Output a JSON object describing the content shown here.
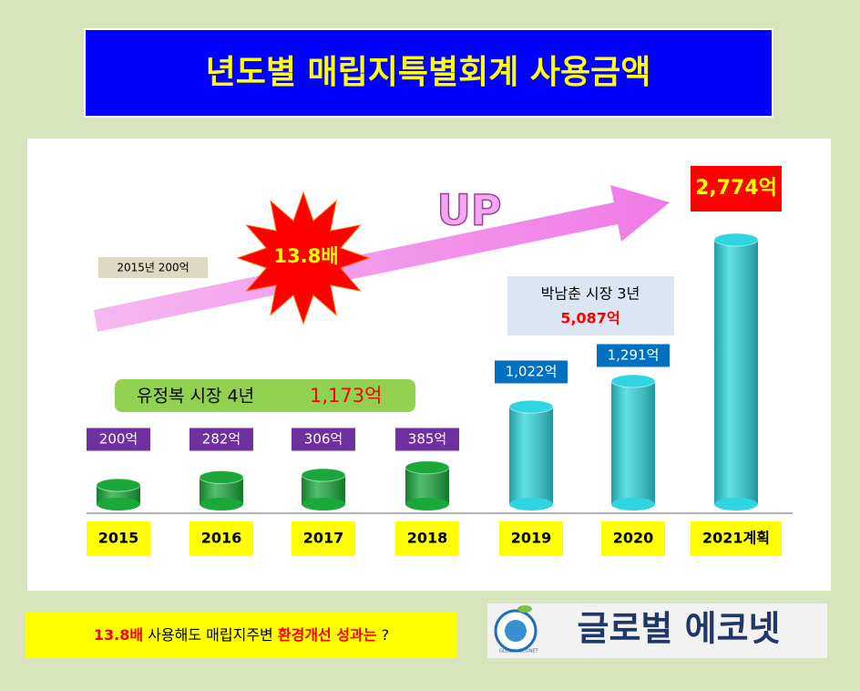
{
  "chart_data": {
    "type": "bar",
    "title": "년도별 매립지특별회계 사용금액",
    "categories": [
      "2015",
      "2016",
      "2017",
      "2018",
      "2019",
      "2020",
      "2021계획"
    ],
    "values": [
      200,
      282,
      306,
      385,
      1022,
      1291,
      2774
    ],
    "value_labels": [
      "200억",
      "282억",
      "306억",
      "385억",
      "1,022억",
      "1,291억",
      "2,774억"
    ],
    "colors": [
      "#1aa83a",
      "#1aa83a",
      "#1aa83a",
      "#1aa83a",
      "#2fd5e0",
      "#2fd5e0",
      "#2fd5e0"
    ],
    "label_colors": [
      "#7030a0",
      "#7030a0",
      "#7030a0",
      "#7030a0",
      "#0070c0",
      "#0070c0",
      "#ff0000"
    ],
    "annotations": {
      "start": "2015년 200억",
      "ratio": "13.8배",
      "up": "UP",
      "mayor1": {
        "name": "유정복 시장 4년",
        "total": "1,173억"
      },
      "mayor2": {
        "name": "박남춘 시장 3년",
        "total": "5,087억"
      }
    }
  },
  "footer": {
    "parts": [
      "13.8배",
      "사용해도 매립지주변",
      "환경개선 성과는",
      "?"
    ]
  },
  "logo": {
    "text": "글로벌 에코넷",
    "sub1": "GLOBAL",
    "sub2": "ECONET"
  }
}
